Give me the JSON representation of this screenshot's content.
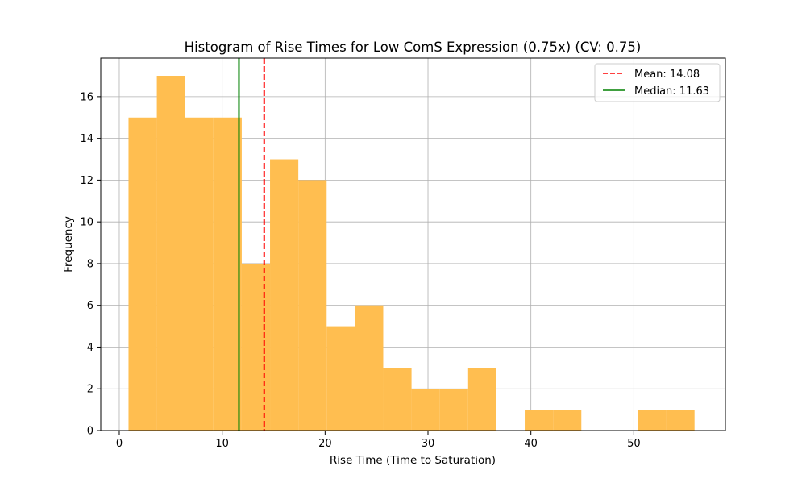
{
  "chart_data": {
    "type": "bar",
    "subtype": "histogram",
    "title": "Histogram of Rise Times for Low ComS Expression (0.75x) (CV: 0.75)",
    "xlabel": "Rise Time (Time to Saturation)",
    "ylabel": "Frequency",
    "xlim": [
      -1.8,
      58.9
    ],
    "ylim": [
      0,
      17.85
    ],
    "xticks": [
      0,
      10,
      20,
      30,
      40,
      50
    ],
    "yticks": [
      0,
      2,
      4,
      6,
      8,
      10,
      12,
      14,
      16
    ],
    "grid": true,
    "bar_color": "#ffbe50",
    "bins": [
      {
        "x0": 0.9,
        "x1": 3.65,
        "count": 15
      },
      {
        "x0": 3.65,
        "x1": 6.4,
        "count": 17
      },
      {
        "x0": 6.4,
        "x1": 9.15,
        "count": 15
      },
      {
        "x0": 9.15,
        "x1": 11.9,
        "count": 15
      },
      {
        "x0": 11.9,
        "x1": 14.65,
        "count": 8
      },
      {
        "x0": 14.65,
        "x1": 17.4,
        "count": 13
      },
      {
        "x0": 17.4,
        "x1": 20.15,
        "count": 12
      },
      {
        "x0": 20.15,
        "x1": 22.9,
        "count": 5
      },
      {
        "x0": 22.9,
        "x1": 25.65,
        "count": 6
      },
      {
        "x0": 25.65,
        "x1": 28.4,
        "count": 3
      },
      {
        "x0": 28.4,
        "x1": 31.15,
        "count": 2
      },
      {
        "x0": 31.15,
        "x1": 33.9,
        "count": 2
      },
      {
        "x0": 33.9,
        "x1": 36.65,
        "count": 3
      },
      {
        "x0": 36.65,
        "x1": 39.4,
        "count": 0
      },
      {
        "x0": 39.4,
        "x1": 42.15,
        "count": 1
      },
      {
        "x0": 42.15,
        "x1": 44.9,
        "count": 1
      },
      {
        "x0": 44.9,
        "x1": 47.65,
        "count": 0
      },
      {
        "x0": 47.65,
        "x1": 50.4,
        "count": 0
      },
      {
        "x0": 50.4,
        "x1": 53.15,
        "count": 1
      },
      {
        "x0": 53.15,
        "x1": 55.9,
        "count": 1
      }
    ],
    "reference_lines": [
      {
        "name": "Mean: 14.08",
        "value": 14.08,
        "color": "#ff0000",
        "style": "dashed"
      },
      {
        "name": "Median: 11.63",
        "value": 11.63,
        "color": "#008000",
        "style": "solid"
      }
    ],
    "legend_position": "top-right"
  }
}
